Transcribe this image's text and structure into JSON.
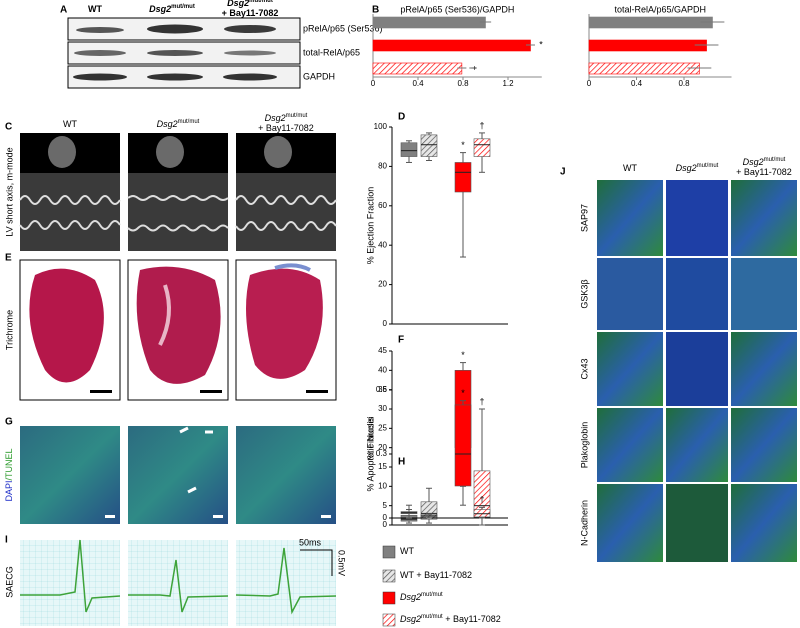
{
  "figure": {
    "letters": [
      "A",
      "B",
      "C",
      "D",
      "E",
      "F",
      "G",
      "H",
      "I",
      "J"
    ],
    "groups": [
      {
        "name": "WT"
      },
      {
        "name": "WT + Bay11-7082"
      },
      {
        "gene": "Dsg2",
        "sup": "mut/mut"
      },
      {
        "gene": "Dsg2",
        "sup": "mut/mut",
        "suffix": " + Bay11-7082"
      }
    ],
    "blot": {
      "columns": [
        {
          "name": "WT"
        },
        {
          "gene": "Dsg2",
          "sup": "mut/mut"
        },
        {
          "gene": "Dsg2",
          "sup": "mut/mut",
          "suffix": "+ Bay11-7082"
        }
      ],
      "rows": [
        "pRelA/p65 (Ser536)",
        "total-RelA/p65",
        "GAPDH"
      ]
    },
    "echo": {
      "columns": [
        {
          "name": "WT"
        },
        {
          "gene": "Dsg2",
          "sup": "mut/mut"
        },
        {
          "gene": "Dsg2",
          "sup": "mut/mut",
          "suffix": "+ Bay11-7082"
        }
      ],
      "row_label": "LV short axis, m-mode"
    },
    "trichrome": {
      "row_label": "Trichrome"
    },
    "tunel": {
      "label_a": "DAPI",
      "label_b": "/TUNEL"
    },
    "ecg": {
      "row_label": "SAECG",
      "time_scale": "50ms",
      "voltage_scale": "0.5mV"
    },
    "immuno": {
      "columns": [
        {
          "name": "WT"
        },
        {
          "gene": "Dsg2",
          "sup": "mut/mut"
        },
        {
          "gene": "Dsg2",
          "sup": "mut/mut",
          "suffix": "+ Bay11-7082"
        }
      ],
      "rows": [
        "SAP97",
        "GSK3β",
        "Cx43",
        "Plakoglobin",
        "N-Cadherin"
      ]
    }
  },
  "chart_data": [
    {
      "type": "hbar",
      "title": "pRelA/p65 (Ser536)/GAPDH",
      "categories": [
        null,
        null,
        null
      ],
      "values": [
        1.0,
        1.4,
        0.79
      ],
      "errors": [
        0.05,
        0.04,
        0.04
      ],
      "colors": [
        "#808080",
        "#ff0000",
        "#ff0000"
      ],
      "patterns": [
        "solid",
        "solid",
        "hatched"
      ],
      "annotations": [
        null,
        "*",
        "†"
      ],
      "xlim": [
        0,
        1.5
      ],
      "xticks": [
        0,
        0.4,
        0.8,
        1.2
      ]
    },
    {
      "type": "hbar",
      "title": "total-RelA/p65/GAPDH",
      "categories": [
        null,
        null,
        null
      ],
      "values": [
        1.04,
        0.99,
        0.93
      ],
      "errors": [
        0.1,
        0.1,
        0.1
      ],
      "colors": [
        "#808080",
        "#ff0000",
        "#ff0000"
      ],
      "patterns": [
        "solid",
        "solid",
        "hatched"
      ],
      "xlim": [
        0,
        1.2
      ],
      "xticks": [
        0,
        0.4,
        0.8
      ]
    },
    {
      "type": "box",
      "ylabel": "% Ejection Fraction",
      "categories": [
        null,
        null,
        null,
        null
      ],
      "boxes": [
        {
          "min": 82,
          "q1": 85,
          "median": 88,
          "q3": 92,
          "max": 93
        },
        {
          "min": 83,
          "q1": 85,
          "median": 91,
          "q3": 96,
          "max": 97
        },
        {
          "min": 34,
          "q1": 67,
          "median": 77,
          "q3": 82,
          "max": 87
        },
        {
          "min": 77,
          "q1": 85,
          "median": 91,
          "q3": 94,
          "max": 97
        }
      ],
      "colors": [
        "#808080",
        "#808080",
        "#ff0000",
        "#ff0000"
      ],
      "patterns": [
        "solid",
        "hatched",
        "solid",
        "hatched"
      ],
      "annotations": [
        null,
        null,
        "*",
        "†"
      ],
      "ylim": [
        0,
        100
      ],
      "yticks": [
        0,
        20,
        40,
        60,
        80,
        100
      ]
    },
    {
      "type": "box",
      "ylabel": "% Fibrosis",
      "categories": [
        null,
        null,
        null,
        null
      ],
      "boxes": [
        {
          "min": 0.5,
          "q1": 1,
          "median": 1.5,
          "q3": 2.5,
          "max": 4
        },
        {
          "min": 0.5,
          "q1": 1.5,
          "median": 3,
          "q3": 6,
          "max": 9.5
        },
        {
          "min": 10,
          "q1": 20,
          "median": 29,
          "q3": 40,
          "max": 42
        },
        {
          "min": 0,
          "q1": 2,
          "median": 5,
          "q3": 14,
          "max": 30
        }
      ],
      "colors": [
        "#808080",
        "#808080",
        "#ff0000",
        "#ff0000"
      ],
      "patterns": [
        "solid",
        "hatched",
        "solid",
        "hatched"
      ],
      "annotations": [
        null,
        null,
        "*",
        "†"
      ],
      "ylim": [
        0,
        45
      ],
      "yticks": [
        0,
        5,
        10,
        15,
        20,
        25,
        30,
        35,
        40,
        45
      ]
    },
    {
      "type": "box",
      "ylabel": "% Apoptotic Nuclei",
      "categories": [
        null,
        null,
        null,
        null
      ],
      "boxes": [
        {
          "min": 0,
          "q1": 0.02,
          "median": 0.025,
          "q3": 0.03,
          "max": 0.06
        },
        {
          "min": 0,
          "q1": 0.005,
          "median": 0.01,
          "q3": 0.015,
          "max": 0.02
        },
        {
          "min": 0.06,
          "q1": 0.15,
          "median": 0.3,
          "q3": 0.53,
          "max": 0.55
        },
        {
          "min": 0,
          "q1": 0.005,
          "median": 0.02,
          "q3": 0.04,
          "max": 0.05
        }
      ],
      "colors": [
        "#808080",
        "#808080",
        "#ff0000",
        "#ff0000"
      ],
      "patterns": [
        "solid",
        "hatched",
        "solid",
        "hatched"
      ],
      "annotations": [
        null,
        null,
        "*",
        "†"
      ],
      "ylim": [
        0,
        0.6
      ],
      "yticks": [
        0,
        0.3,
        0.6
      ]
    }
  ]
}
